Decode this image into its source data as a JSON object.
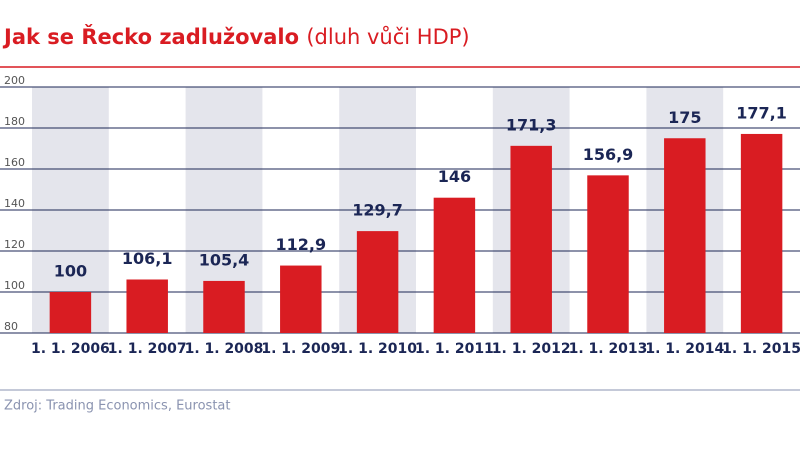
{
  "chart_data": {
    "type": "bar",
    "title": "Jak se Řecko zadlužovalo",
    "subtitle": "(dluh vůči HDP)",
    "source": "Zdroj: Trading Economics, Eurostat",
    "categories": [
      "1. 1. 2006",
      "1. 1. 2007",
      "1. 1. 2008",
      "1. 1. 2009",
      "1. 1. 2010",
      "1. 1. 2011",
      "1. 1. 2012",
      "1. 1. 2013",
      "1. 1. 2014",
      "1. 1. 2015"
    ],
    "values": [
      100,
      106.1,
      105.4,
      112.9,
      129.7,
      146,
      171.3,
      156.9,
      175,
      177.1
    ],
    "value_labels": [
      "100",
      "106,1",
      "105,4",
      "112,9",
      "129,7",
      "146",
      "171,3",
      "156,9",
      "175",
      "177,1"
    ],
    "color": "#d91c22",
    "ylim": [
      80,
      200
    ],
    "yticks": [
      80,
      100,
      120,
      140,
      160,
      180,
      200
    ],
    "grid": true
  }
}
